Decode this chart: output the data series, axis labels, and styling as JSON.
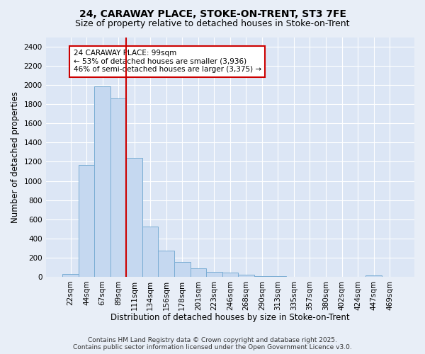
{
  "title1": "24, CARAWAY PLACE, STOKE-ON-TRENT, ST3 7FE",
  "title2": "Size of property relative to detached houses in Stoke-on-Trent",
  "xlabel": "Distribution of detached houses by size in Stoke-on-Trent",
  "ylabel": "Number of detached properties",
  "bar_labels": [
    "22sqm",
    "44sqm",
    "67sqm",
    "89sqm",
    "111sqm",
    "134sqm",
    "156sqm",
    "178sqm",
    "201sqm",
    "223sqm",
    "246sqm",
    "268sqm",
    "290sqm",
    "313sqm",
    "335sqm",
    "357sqm",
    "380sqm",
    "402sqm",
    "424sqm",
    "447sqm",
    "469sqm"
  ],
  "bar_values": [
    25,
    1170,
    1990,
    1860,
    1240,
    520,
    270,
    155,
    90,
    52,
    42,
    18,
    8,
    3,
    1,
    0,
    0,
    0,
    0,
    15,
    0
  ],
  "bar_color": "#c5d8f0",
  "bar_edge_color": "#7aadd4",
  "vline_color": "#cc0000",
  "annotation_text": "24 CARAWAY PLACE: 99sqm\n← 53% of detached houses are smaller (3,936)\n46% of semi-detached houses are larger (3,375) →",
  "annotation_box_color": "#ffffff",
  "annotation_box_edge": "#cc0000",
  "ylim": [
    0,
    2500
  ],
  "yticks": [
    0,
    200,
    400,
    600,
    800,
    1000,
    1200,
    1400,
    1600,
    1800,
    2000,
    2200,
    2400
  ],
  "plot_bg_color": "#dce6f5",
  "fig_bg_color": "#e8eef7",
  "grid_color": "#ffffff",
  "footer1": "Contains HM Land Registry data © Crown copyright and database right 2025.",
  "footer2": "Contains public sector information licensed under the Open Government Licence v3.0.",
  "title_fontsize": 10,
  "subtitle_fontsize": 9,
  "axis_label_fontsize": 8.5,
  "tick_fontsize": 7.5,
  "annotation_fontsize": 7.5,
  "footer_fontsize": 6.5,
  "vline_pos": 3.5
}
